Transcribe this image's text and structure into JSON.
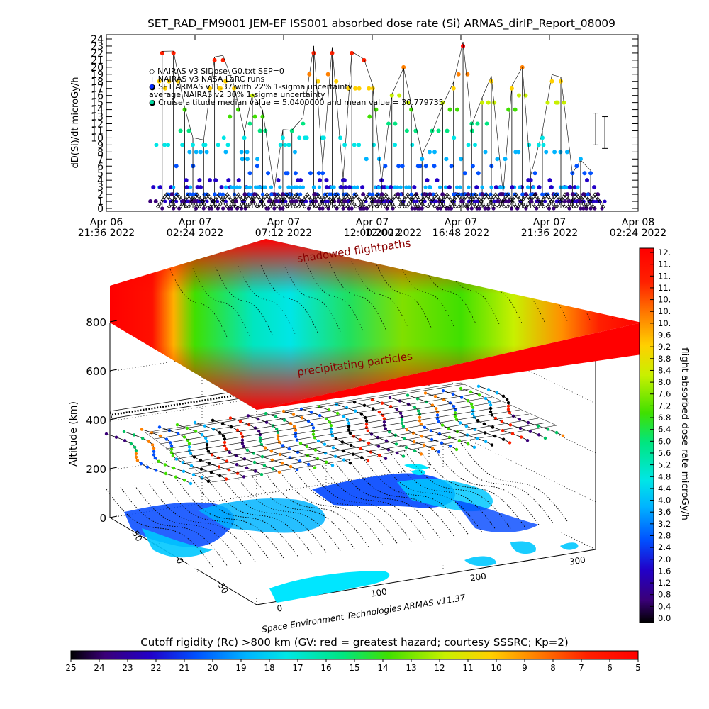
{
  "chart_data": [
    {
      "type": "scatter",
      "title": "SET_RAD_FM9001  JEM-EF ISS001 absorbed dose rate (Si) ARMAS_dirIP_Report_08009",
      "ylabel": "dD(Si)/dt microGy/h",
      "ylim": [
        0,
        24
      ],
      "y_ticks": [
        "0",
        "1",
        "2",
        "3",
        "4",
        "5",
        "6",
        "7",
        "8",
        "9",
        "10",
        "11",
        "12",
        "13",
        "14",
        "15",
        "16",
        "17",
        "18",
        "19",
        "20",
        "21",
        "22",
        "23",
        "24"
      ],
      "x_ticks": [
        {
          "l1": "Apr 06",
          "l2": "21:36 2022"
        },
        {
          "l1": "Apr 07",
          "l2": "02:24 2022"
        },
        {
          "l1": "Apr 07",
          "l2": "07:12 2022"
        },
        {
          "l1": "Apr 07",
          "l2": "12:00 2022"
        },
        {
          "l1": "Apr 07",
          "l2": "16:48 2022"
        },
        {
          "l1": "Apr 07",
          "l2": "21:36 2022"
        },
        {
          "l1": "Apr 08",
          "l2": "02:24 2022"
        }
      ],
      "legend": [
        "◇ NAIRAS v3 SiDose_G0.txt  SEP=0",
        "+ NAIRAS v3 NASA LaRC runs",
        "● SET ARMAS v11.37 with 22% 1-sigma uncertainty",
        "  average NAIRAS v2 30% 1-sigma uncertainty",
        "● Cruise altitude median value = 5.0400000 and mean value = 30.779735"
      ],
      "legend_placement": "top-left",
      "overlay_text": "12:00 2022",
      "series": [
        {
          "name": "SET ARMAS v11.37",
          "x_range_hours": [
            3.1,
            26.3
          ],
          "y_range": [
            0,
            24
          ]
        },
        {
          "name": "NAIRAS v3",
          "y_range": [
            0,
            2
          ]
        }
      ]
    },
    {
      "type": "heatmap",
      "subtype": "3d-surface",
      "zlabel": "Altitude (km)",
      "z_ticks": [
        "0",
        "200",
        "400",
        "600",
        "800"
      ],
      "lat_ticks": [
        "50",
        "0",
        "-50"
      ],
      "lon_ticks": [
        "0",
        "100",
        "200",
        "300"
      ],
      "annotations": [
        "shadowed flightpaths",
        "precipitating particles"
      ],
      "credit": "Space Environment Technologies ARMAS v11.37",
      "colorbar": {
        "label": "flight absorbed dose rate microGy/h",
        "ticks": [
          "12.",
          "11.",
          "11.",
          "11.",
          "10.",
          "10.",
          "10.",
          "9.6",
          "9.2",
          "8.8",
          "8.4",
          "8.0",
          "7.6",
          "7.2",
          "6.8",
          "6.4",
          "6.0",
          "5.6",
          "5.2",
          "4.8",
          "4.4",
          "4.0",
          "3.6",
          "3.2",
          "2.8",
          "2.4",
          "2.0",
          "1.6",
          "1.2",
          "0.8",
          "0.4",
          "0.0"
        ]
      },
      "bottom_bar": {
        "title": "Cutoff rigidity (Rc) >800 km (GV: red = greatest hazard; courtesy SSSRC; Kp=2)",
        "ticks": [
          "25",
          "24",
          "23",
          "22",
          "21",
          "20",
          "19",
          "18",
          "17",
          "16",
          "15",
          "14",
          "13",
          "12",
          "11",
          "10",
          "9",
          "8",
          "7",
          "6",
          "5"
        ]
      }
    }
  ]
}
